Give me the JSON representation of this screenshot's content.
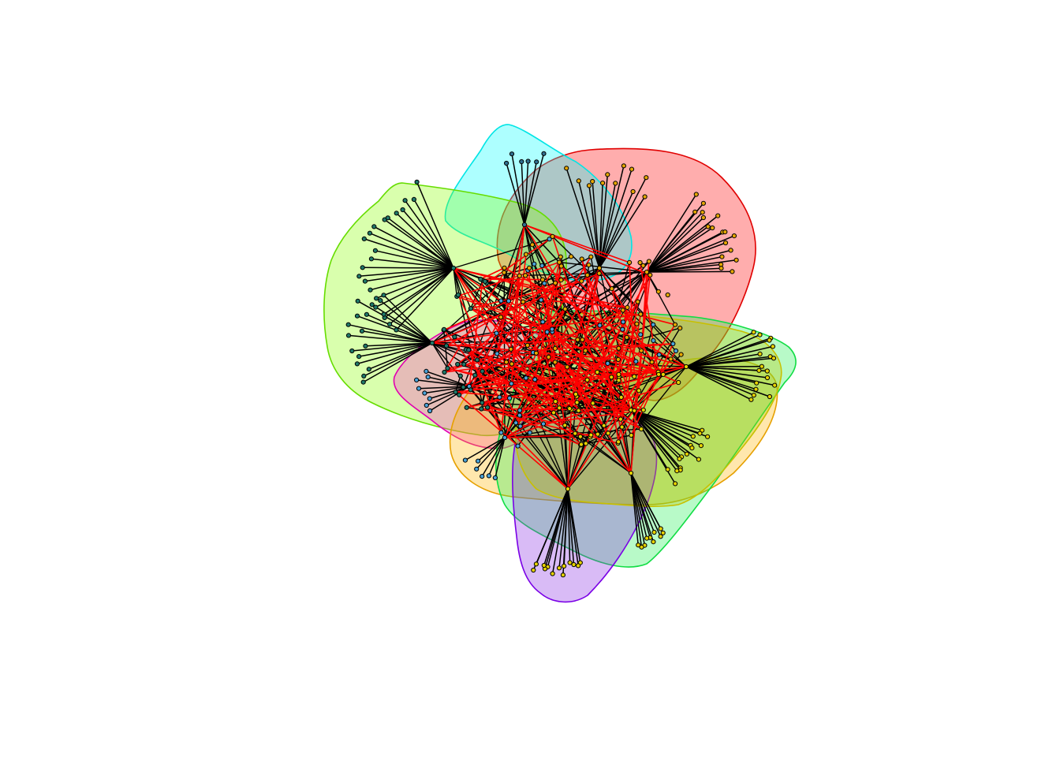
{
  "diagram": {
    "type": "network-community-plot",
    "background": "#ffffff",
    "communities": [
      {
        "color_name": "red",
        "fill": "#ff0000",
        "stroke": "#e00000",
        "node_color": "#e6a700"
      },
      {
        "color_name": "cyan",
        "fill": "#00ffff",
        "stroke": "#00e5e5",
        "node_color": "#2f6f8f"
      },
      {
        "color_name": "chartreuse",
        "fill": "#88ff00",
        "stroke": "#66dd00",
        "node_color": "#1f7a6a"
      },
      {
        "color_name": "magenta",
        "fill": "#ff33cc",
        "stroke": "#e000b0",
        "node_color": "#4aa3d9"
      },
      {
        "color_name": "orange",
        "fill": "#ffb300",
        "stroke": "#e6a000",
        "node_color": "#4aa3d9"
      },
      {
        "color_name": "green",
        "fill": "#22ee55",
        "stroke": "#11dd44",
        "node_color": "#e6d200"
      },
      {
        "color_name": "purple",
        "fill": "#8a2be2",
        "stroke": "#7a00e6",
        "node_color": "#e6d200"
      },
      {
        "color_name": "olive",
        "fill": "#b8c800",
        "stroke": "#c8c000",
        "node_color": "#e6d200"
      }
    ],
    "edge_colors": {
      "within": "#000000",
      "between": "#ff0000"
    },
    "node_outline": "#000000"
  }
}
